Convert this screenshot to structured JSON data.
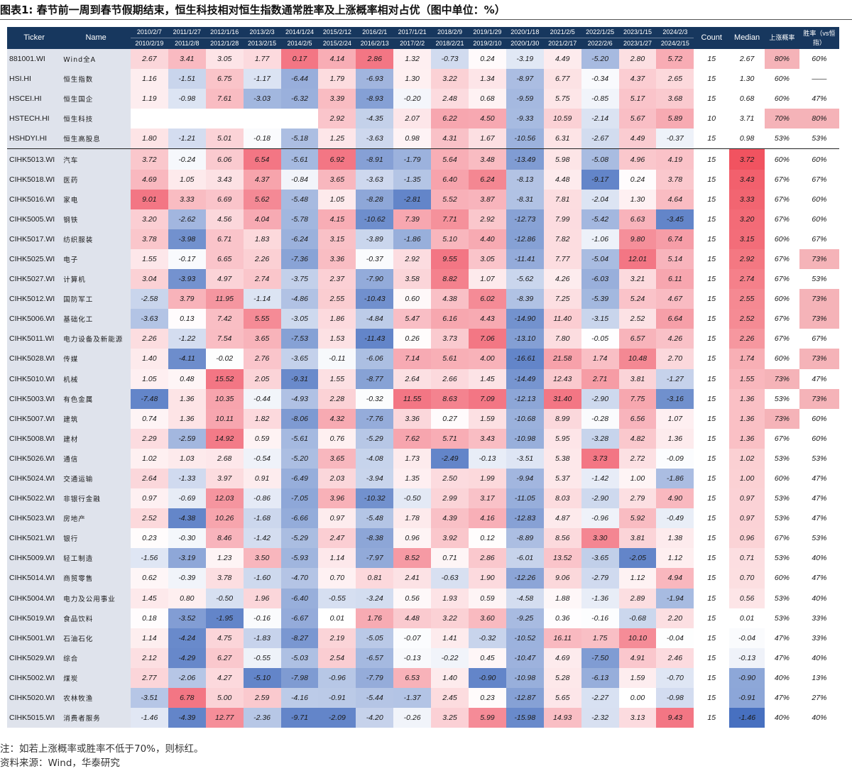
{
  "title": "图表1:  春节前一周到春节假期结束，恒生科技相对恒生指数通常胜率及上涨概率相对占优（图中单位：%）",
  "header": {
    "ticker": "Ticker",
    "name": "Name",
    "periods": [
      [
        "2010/2/7",
        "2010/2/19"
      ],
      [
        "2011/1/27",
        "2011/2/8"
      ],
      [
        "2012/1/16",
        "2012/1/28"
      ],
      [
        "2013/2/3",
        "2013/2/15"
      ],
      [
        "2014/1/24",
        "2014/2/5"
      ],
      [
        "2015/2/12",
        "2015/2/24"
      ],
      [
        "2016/2/1",
        "2016/2/13"
      ],
      [
        "2017/1/21",
        "2017/2/2"
      ],
      [
        "2018/2/9",
        "2018/2/21"
      ],
      [
        "2019/1/29",
        "2019/2/10"
      ],
      [
        "2020/1/18",
        "2020/1/30"
      ],
      [
        "2021/2/5",
        "2021/2/17"
      ],
      [
        "2022/1/25",
        "2022/2/6"
      ],
      [
        "2023/1/15",
        "2023/1/27"
      ],
      [
        "2024/2/3",
        "2024/2/15"
      ]
    ],
    "count": "Count",
    "median": "Median",
    "prob": "上涨概率",
    "winrate": "胜率（vs恒指）"
  },
  "rows": [
    {
      "ticker": "881001.WI",
      "name": "Wind全A",
      "vals": [
        "2.67",
        "3.41",
        "3.05",
        "1.77",
        "0.17",
        "4.14",
        "2.86",
        "1.32",
        "-0.73",
        "0.24",
        "-3.19",
        "4.49",
        "-5.20",
        "2.80",
        "5.72"
      ],
      "count": "15",
      "median": "2.67",
      "prob": "80%",
      "win": "60%"
    },
    {
      "ticker": "HSI.HI",
      "name": "恒生指数",
      "vals": [
        "1.16",
        "-1.51",
        "6.75",
        "-1.17",
        "-6.44",
        "1.79",
        "-6.93",
        "1.30",
        "3.22",
        "1.34",
        "-8.97",
        "6.77",
        "-0.34",
        "4.37",
        "2.65"
      ],
      "count": "15",
      "median": "1.30",
      "prob": "60%",
      "win": "——"
    },
    {
      "ticker": "HSCEI.HI",
      "name": "恒生国企",
      "vals": [
        "1.19",
        "-0.98",
        "7.61",
        "-3.03",
        "-6.32",
        "3.39",
        "-8.93",
        "-0.20",
        "2.48",
        "0.68",
        "-9.59",
        "5.75",
        "-0.85",
        "5.17",
        "3.68"
      ],
      "count": "15",
      "median": "0.68",
      "prob": "60%",
      "win": "47%"
    },
    {
      "ticker": "HSTECH.HI",
      "name": "恒生科技",
      "vals": [
        "",
        "",
        "",
        "",
        "",
        "2.92",
        "-4.35",
        "2.07",
        "6.22",
        "4.50",
        "-9.33",
        "10.59",
        "-2.14",
        "5.67",
        "5.89"
      ],
      "count": "10",
      "median": "3.71",
      "prob": "70%",
      "win": "80%"
    },
    {
      "ticker": "HSHDYI.HI",
      "name": "恒生高股息",
      "vals": [
        "1.80",
        "-1.21",
        "5.01",
        "-0.18",
        "-5.18",
        "1.25",
        "-3.63",
        "0.98",
        "4.31",
        "1.67",
        "-10.56",
        "6.31",
        "-2.67",
        "4.49",
        "-0.37"
      ],
      "count": "15",
      "median": "0.98",
      "prob": "53%",
      "win": "53%"
    },
    {
      "ticker": "CIHK5013.WI",
      "name": "汽车",
      "vals": [
        "3.72",
        "-0.24",
        "6.06",
        "6.54",
        "-5.61",
        "6.92",
        "-8.91",
        "-1.79",
        "5.64",
        "3.48",
        "-13.49",
        "5.98",
        "-5.08",
        "4.96",
        "4.19"
      ],
      "count": "15",
      "median": "3.72",
      "prob": "60%",
      "win": "60%"
    },
    {
      "ticker": "CIHK5018.WI",
      "name": "医药",
      "vals": [
        "4.69",
        "1.05",
        "3.43",
        "4.37",
        "-0.84",
        "3.65",
        "-3.63",
        "-1.35",
        "6.40",
        "6.24",
        "-8.13",
        "4.48",
        "-9.17",
        "0.24",
        "3.78"
      ],
      "count": "15",
      "median": "3.43",
      "prob": "67%",
      "win": "67%"
    },
    {
      "ticker": "CIHK5016.WI",
      "name": "家电",
      "vals": [
        "9.01",
        "3.33",
        "6.69",
        "5.62",
        "-5.48",
        "1.05",
        "-8.28",
        "-2.81",
        "5.52",
        "3.87",
        "-8.31",
        "7.81",
        "-2.04",
        "1.30",
        "4.64"
      ],
      "count": "15",
      "median": "3.33",
      "prob": "67%",
      "win": "60%"
    },
    {
      "ticker": "CIHK5005.WI",
      "name": "钢铁",
      "vals": [
        "3.20",
        "-2.62",
        "4.56",
        "4.04",
        "-5.78",
        "4.15",
        "-10.62",
        "7.39",
        "7.71",
        "2.92",
        "-12.73",
        "7.99",
        "-5.42",
        "6.63",
        "-3.45"
      ],
      "count": "15",
      "median": "3.20",
      "prob": "67%",
      "win": "60%"
    },
    {
      "ticker": "CIHK5017.WI",
      "name": "纺织服装",
      "vals": [
        "3.78",
        "-3.98",
        "6.71",
        "1.83",
        "-6.24",
        "3.15",
        "-3.89",
        "-1.86",
        "5.10",
        "4.40",
        "-12.86",
        "7.82",
        "-1.06",
        "9.80",
        "6.74"
      ],
      "count": "15",
      "median": "3.15",
      "prob": "60%",
      "win": "67%"
    },
    {
      "ticker": "CIHK5025.WI",
      "name": "电子",
      "vals": [
        "1.55",
        "-0.17",
        "6.65",
        "2.26",
        "-7.36",
        "3.36",
        "-0.37",
        "2.92",
        "9.55",
        "3.05",
        "-11.41",
        "7.77",
        "-5.04",
        "12.01",
        "5.14"
      ],
      "count": "15",
      "median": "2.92",
      "prob": "67%",
      "win": "73%"
    },
    {
      "ticker": "CIHK5027.WI",
      "name": "计算机",
      "vals": [
        "3.04",
        "-3.93",
        "4.97",
        "2.74",
        "-3.75",
        "2.37",
        "-7.90",
        "3.58",
        "8.82",
        "1.07",
        "-5.62",
        "4.26",
        "-6.03",
        "3.21",
        "6.11"
      ],
      "count": "15",
      "median": "2.74",
      "prob": "67%",
      "win": "53%"
    },
    {
      "ticker": "CIHK5012.WI",
      "name": "国防军工",
      "vals": [
        "-2.58",
        "3.79",
        "11.95",
        "-1.14",
        "-4.86",
        "2.55",
        "-10.43",
        "0.60",
        "4.38",
        "6.02",
        "-8.39",
        "7.25",
        "-5.39",
        "5.24",
        "4.67"
      ],
      "count": "15",
      "median": "2.55",
      "prob": "60%",
      "win": "73%"
    },
    {
      "ticker": "CIHK5006.WI",
      "name": "基础化工",
      "vals": [
        "-3.63",
        "0.13",
        "7.42",
        "5.55",
        "-3.05",
        "1.86",
        "-4.84",
        "5.47",
        "6.16",
        "4.43",
        "-14.90",
        "11.40",
        "-3.15",
        "2.52",
        "6.64"
      ],
      "count": "15",
      "median": "2.52",
      "prob": "67%",
      "win": "73%"
    },
    {
      "ticker": "CIHK5011.WI",
      "name": "电力设备及新能源",
      "vals": [
        "2.26",
        "-1.22",
        "7.54",
        "3.65",
        "-7.53",
        "1.53",
        "-11.43",
        "0.26",
        "3.73",
        "7.06",
        "-13.10",
        "7.80",
        "-0.05",
        "6.57",
        "4.26"
      ],
      "count": "15",
      "median": "2.26",
      "prob": "67%",
      "win": "67%"
    },
    {
      "ticker": "CIHK5028.WI",
      "name": "传媒",
      "vals": [
        "1.40",
        "-4.11",
        "-0.02",
        "2.76",
        "-3.65",
        "-0.11",
        "-6.06",
        "7.14",
        "5.61",
        "4.00",
        "-16.61",
        "21.58",
        "1.74",
        "10.48",
        "2.70"
      ],
      "count": "15",
      "median": "1.74",
      "prob": "60%",
      "win": "73%"
    },
    {
      "ticker": "CIHK5010.WI",
      "name": "机械",
      "vals": [
        "1.05",
        "0.48",
        "15.52",
        "2.05",
        "-9.31",
        "1.55",
        "-8.77",
        "2.64",
        "2.66",
        "1.45",
        "-14.49",
        "12.43",
        "2.71",
        "3.81",
        "-1.27"
      ],
      "count": "15",
      "median": "1.55",
      "prob": "73%",
      "win": "47%"
    },
    {
      "ticker": "CIHK5003.WI",
      "name": "有色金属",
      "vals": [
        "-7.48",
        "1.36",
        "10.35",
        "-0.44",
        "-4.93",
        "2.28",
        "-0.32",
        "11.55",
        "8.63",
        "7.09",
        "-12.13",
        "31.40",
        "-2.90",
        "7.75",
        "-3.16"
      ],
      "count": "15",
      "median": "1.36",
      "prob": "53%",
      "win": "73%"
    },
    {
      "ticker": "CIHK5007.WI",
      "name": "建筑",
      "vals": [
        "0.74",
        "1.36",
        "10.11",
        "1.82",
        "-8.06",
        "4.32",
        "-7.76",
        "3.36",
        "0.27",
        "1.59",
        "-10.68",
        "8.99",
        "-0.28",
        "6.56",
        "1.07"
      ],
      "count": "15",
      "median": "1.36",
      "prob": "73%",
      "win": "60%"
    },
    {
      "ticker": "CIHK5008.WI",
      "name": "建材",
      "vals": [
        "2.29",
        "-2.59",
        "14.92",
        "0.59",
        "-5.61",
        "0.76",
        "-5.29",
        "7.62",
        "5.71",
        "3.43",
        "-10.98",
        "5.95",
        "-3.28",
        "4.82",
        "1.36"
      ],
      "count": "15",
      "median": "1.36",
      "prob": "67%",
      "win": "60%"
    },
    {
      "ticker": "CIHK5026.WI",
      "name": "通信",
      "vals": [
        "1.02",
        "1.03",
        "2.68",
        "-0.54",
        "-5.20",
        "3.65",
        "-4.08",
        "1.73",
        "-2.49",
        "-0.13",
        "-3.51",
        "5.38",
        "3.73",
        "2.72",
        "-0.09"
      ],
      "count": "15",
      "median": "1.02",
      "prob": "53%",
      "win": "53%"
    },
    {
      "ticker": "CIHK5024.WI",
      "name": "交通运输",
      "vals": [
        "2.64",
        "-1.33",
        "3.97",
        "0.91",
        "-6.49",
        "2.03",
        "-3.94",
        "1.35",
        "2.50",
        "1.99",
        "-9.94",
        "5.37",
        "-1.42",
        "1.00",
        "-1.86"
      ],
      "count": "15",
      "median": "1.00",
      "prob": "60%",
      "win": "47%"
    },
    {
      "ticker": "CIHK5022.WI",
      "name": "非银行金融",
      "vals": [
        "0.97",
        "-0.69",
        "12.03",
        "-0.86",
        "-7.05",
        "3.96",
        "-10.32",
        "-0.50",
        "2.99",
        "3.17",
        "-11.05",
        "8.03",
        "-2.90",
        "2.79",
        "4.90"
      ],
      "count": "15",
      "median": "0.97",
      "prob": "53%",
      "win": "47%"
    },
    {
      "ticker": "CIHK5023.WI",
      "name": "房地产",
      "vals": [
        "2.52",
        "-4.38",
        "10.26",
        "-1.68",
        "-6.66",
        "0.97",
        "-5.48",
        "1.78",
        "4.39",
        "4.16",
        "-12.83",
        "4.87",
        "-0.96",
        "5.92",
        "-0.49"
      ],
      "count": "15",
      "median": "0.97",
      "prob": "53%",
      "win": "47%"
    },
    {
      "ticker": "CIHK5021.WI",
      "name": "银行",
      "vals": [
        "0.23",
        "-0.30",
        "8.46",
        "-1.42",
        "-5.29",
        "2.47",
        "-8.38",
        "0.96",
        "3.92",
        "0.12",
        "-8.89",
        "8.56",
        "3.30",
        "3.81",
        "1.38"
      ],
      "count": "15",
      "median": "0.96",
      "prob": "67%",
      "win": "53%"
    },
    {
      "ticker": "CIHK5009.WI",
      "name": "轻工制造",
      "vals": [
        "-1.56",
        "-3.19",
        "1.23",
        "3.50",
        "-5.93",
        "1.14",
        "-7.97",
        "8.52",
        "0.71",
        "2.86",
        "-6.01",
        "13.52",
        "-3.65",
        "-2.05",
        "1.12"
      ],
      "count": "15",
      "median": "0.71",
      "prob": "53%",
      "win": "40%"
    },
    {
      "ticker": "CIHK5014.WI",
      "name": "商贸零售",
      "vals": [
        "0.62",
        "-0.39",
        "3.78",
        "-1.60",
        "-4.70",
        "0.70",
        "0.81",
        "2.41",
        "-0.63",
        "1.90",
        "-12.26",
        "9.06",
        "-2.79",
        "1.12",
        "4.94"
      ],
      "count": "15",
      "median": "0.70",
      "prob": "60%",
      "win": "47%"
    },
    {
      "ticker": "CIHK5004.WI",
      "name": "电力及公用事业",
      "vals": [
        "1.45",
        "0.80",
        "-0.50",
        "1.96",
        "-6.40",
        "-0.55",
        "-3.24",
        "0.56",
        "1.93",
        "0.59",
        "-4.58",
        "1.88",
        "-1.36",
        "2.89",
        "-1.94"
      ],
      "count": "15",
      "median": "0.56",
      "prob": "53%",
      "win": "40%"
    },
    {
      "ticker": "CIHK5019.WI",
      "name": "食品饮料",
      "vals": [
        "0.18",
        "-3.52",
        "-1.95",
        "-0.16",
        "-6.67",
        "0.01",
        "1.76",
        "4.48",
        "3.22",
        "3.60",
        "-9.25",
        "0.36",
        "-0.16",
        "-0.68",
        "2.20"
      ],
      "count": "15",
      "median": "0.01",
      "prob": "53%",
      "win": "33%"
    },
    {
      "ticker": "CIHK5001.WI",
      "name": "石油石化",
      "vals": [
        "1.14",
        "-4.24",
        "4.75",
        "-1.83",
        "-8.27",
        "2.19",
        "-5.05",
        "-0.07",
        "1.41",
        "-0.32",
        "-10.52",
        "16.11",
        "1.75",
        "10.10",
        "-0.04"
      ],
      "count": "15",
      "median": "-0.04",
      "prob": "47%",
      "win": "33%"
    },
    {
      "ticker": "CIHK5029.WI",
      "name": "综合",
      "vals": [
        "2.12",
        "-4.29",
        "6.27",
        "-0.55",
        "-5.03",
        "2.54",
        "-6.57",
        "-0.13",
        "-0.22",
        "0.45",
        "-10.47",
        "4.69",
        "-7.50",
        "4.91",
        "2.46"
      ],
      "count": "15",
      "median": "-0.13",
      "prob": "47%",
      "win": "40%"
    },
    {
      "ticker": "CIHK5002.WI",
      "name": "煤炭",
      "vals": [
        "2.77",
        "-2.06",
        "4.27",
        "-5.10",
        "-7.98",
        "-0.96",
        "-7.79",
        "6.53",
        "1.40",
        "-0.90",
        "-10.98",
        "5.28",
        "-6.13",
        "1.59",
        "-0.70"
      ],
      "count": "15",
      "median": "-0.90",
      "prob": "40%",
      "win": "13%"
    },
    {
      "ticker": "CIHK5020.WI",
      "name": "农林牧渔",
      "vals": [
        "-3.51",
        "6.78",
        "5.00",
        "2.59",
        "-4.16",
        "-0.91",
        "-5.44",
        "-1.37",
        "2.45",
        "0.23",
        "-12.87",
        "5.65",
        "-2.27",
        "0.00",
        "-0.98"
      ],
      "count": "15",
      "median": "-0.91",
      "prob": "47%",
      "win": "27%"
    },
    {
      "ticker": "CIHK5015.WI",
      "name": "消费者服务",
      "vals": [
        "-1.46",
        "-4.39",
        "12.77",
        "-2.36",
        "-9.71",
        "-2.09",
        "-4.20",
        "-0.26",
        "3.25",
        "5.99",
        "-15.98",
        "14.93",
        "-2.32",
        "3.13",
        "9.43"
      ],
      "count": "15",
      "median": "-1.46",
      "prob": "40%",
      "win": "40%"
    }
  ],
  "notes": [
    "注：如若上涨概率或胜率不低于70%，则标红。",
    "资料来源：Wind，华泰研究"
  ],
  "colors": {
    "header_bg": "#17375e",
    "label_bg": "#dfe3ec",
    "pos_max": "#f26f7d",
    "neg_max": "#5b7fc6",
    "highlight": "#f5b3b8"
  }
}
